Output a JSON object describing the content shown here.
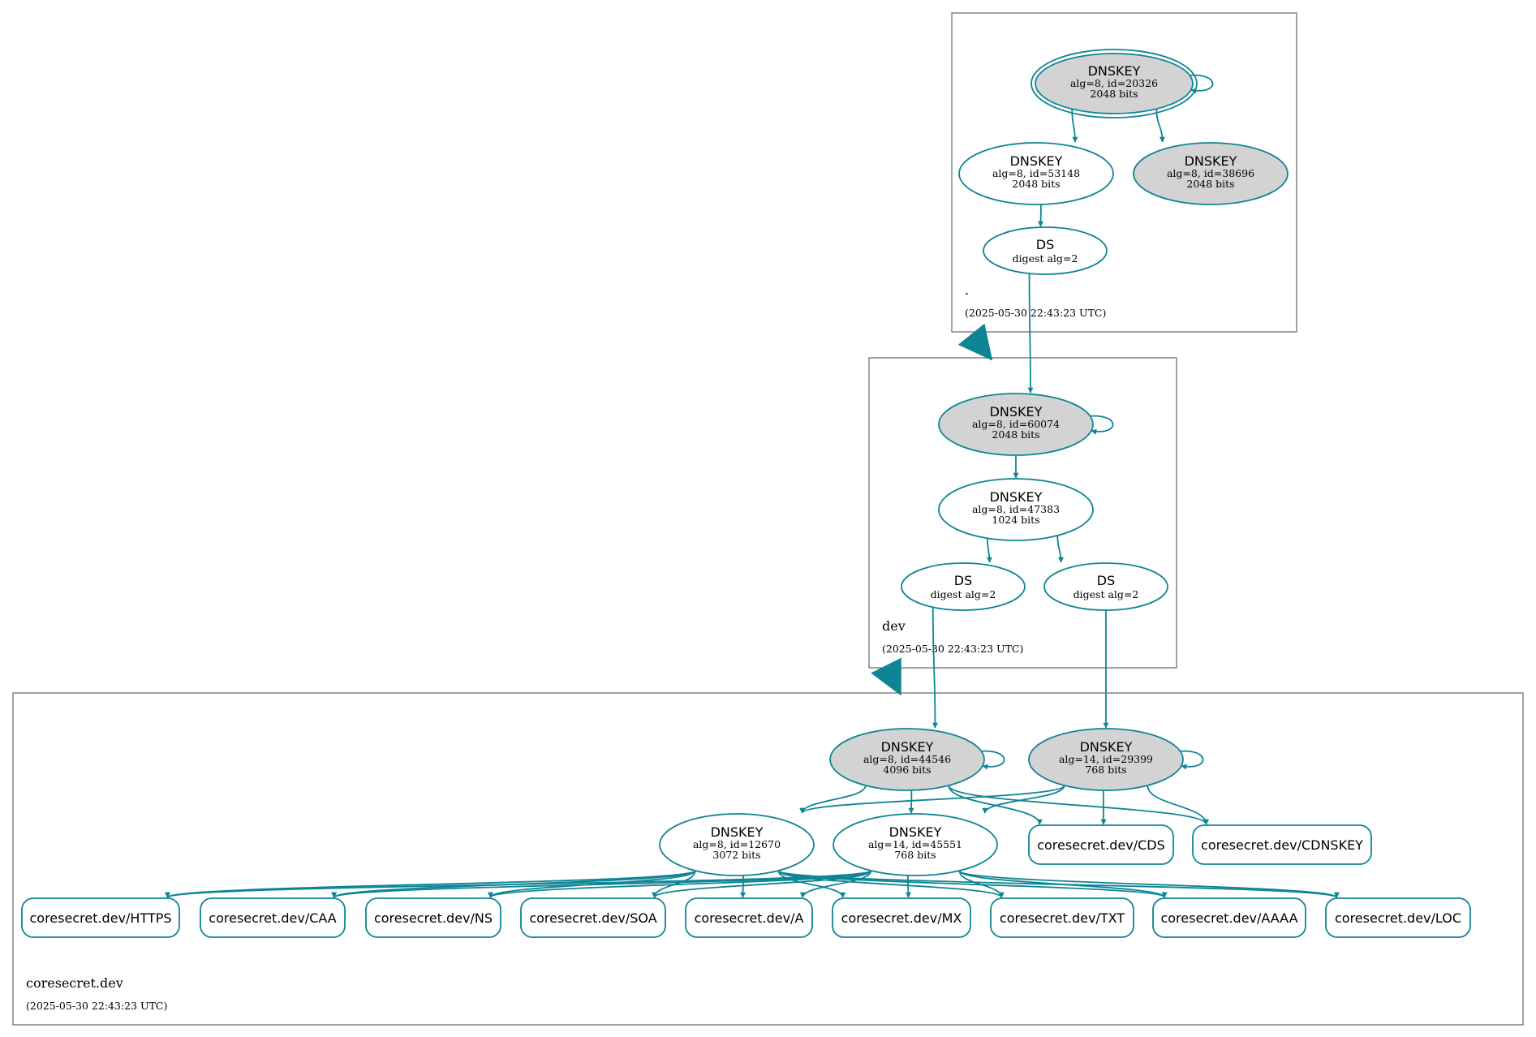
{
  "colors": {
    "edge": "#0e8595",
    "zone_border": "#666666",
    "key_fill": "#d3d3d3",
    "node_fill": "#ffffff"
  },
  "zones": [
    {
      "id": "root",
      "name": ".",
      "timestamp": "(2025-05-30 22:43:23 UTC)"
    },
    {
      "id": "dev",
      "name": "dev",
      "timestamp": "(2025-05-30 22:43:23 UTC)"
    },
    {
      "id": "coresecret",
      "name": "coresecret.dev",
      "timestamp": "(2025-05-30 22:43:23 UTC)"
    }
  ],
  "nodes": [
    {
      "id": "k20326",
      "zone": "root",
      "kind": "key",
      "title": "DNSKEY",
      "line2": "alg=8, id=20326",
      "line3": "2048 bits",
      "filled": true,
      "double": true
    },
    {
      "id": "k53148",
      "zone": "root",
      "kind": "key",
      "title": "DNSKEY",
      "line2": "alg=8, id=53148",
      "line3": "2048 bits",
      "filled": false
    },
    {
      "id": "k38696",
      "zone": "root",
      "kind": "key",
      "title": "DNSKEY",
      "line2": "alg=8, id=38696",
      "line3": "2048 bits",
      "filled": true
    },
    {
      "id": "dsroot",
      "zone": "root",
      "kind": "ds",
      "title": "DS",
      "line2": "digest alg=2"
    },
    {
      "id": "k60074",
      "zone": "dev",
      "kind": "key",
      "title": "DNSKEY",
      "line2": "alg=8, id=60074",
      "line3": "2048 bits",
      "filled": true
    },
    {
      "id": "k47383",
      "zone": "dev",
      "kind": "key",
      "title": "DNSKEY",
      "line2": "alg=8, id=47383",
      "line3": "1024 bits",
      "filled": false
    },
    {
      "id": "dsdev1",
      "zone": "dev",
      "kind": "ds",
      "title": "DS",
      "line2": "digest alg=2"
    },
    {
      "id": "dsdev2",
      "zone": "dev",
      "kind": "ds",
      "title": "DS",
      "line2": "digest alg=2"
    },
    {
      "id": "k44546",
      "zone": "coresecret",
      "kind": "key",
      "title": "DNSKEY",
      "line2": "alg=8, id=44546",
      "line3": "4096 bits",
      "filled": true
    },
    {
      "id": "k29399",
      "zone": "coresecret",
      "kind": "key",
      "title": "DNSKEY",
      "line2": "alg=14, id=29399",
      "line3": "768 bits",
      "filled": true
    },
    {
      "id": "k12670",
      "zone": "coresecret",
      "kind": "key",
      "title": "DNSKEY",
      "line2": "alg=8, id=12670",
      "line3": "3072 bits",
      "filled": false
    },
    {
      "id": "k45551",
      "zone": "coresecret",
      "kind": "key",
      "title": "DNSKEY",
      "line2": "alg=14, id=45551",
      "line3": "768 bits",
      "filled": false
    },
    {
      "id": "cds",
      "zone": "coresecret",
      "kind": "rr",
      "title": "coresecret.dev/CDS"
    },
    {
      "id": "cdnskey",
      "zone": "coresecret",
      "kind": "rr",
      "title": "coresecret.dev/CDNSKEY"
    },
    {
      "id": "https",
      "zone": "coresecret",
      "kind": "rr",
      "title": "coresecret.dev/HTTPS"
    },
    {
      "id": "caa",
      "zone": "coresecret",
      "kind": "rr",
      "title": "coresecret.dev/CAA"
    },
    {
      "id": "ns",
      "zone": "coresecret",
      "kind": "rr",
      "title": "coresecret.dev/NS"
    },
    {
      "id": "soa",
      "zone": "coresecret",
      "kind": "rr",
      "title": "coresecret.dev/SOA"
    },
    {
      "id": "a",
      "zone": "coresecret",
      "kind": "rr",
      "title": "coresecret.dev/A"
    },
    {
      "id": "mx",
      "zone": "coresecret",
      "kind": "rr",
      "title": "coresecret.dev/MX"
    },
    {
      "id": "txt",
      "zone": "coresecret",
      "kind": "rr",
      "title": "coresecret.dev/TXT"
    },
    {
      "id": "aaaa",
      "zone": "coresecret",
      "kind": "rr",
      "title": "coresecret.dev/AAAA"
    },
    {
      "id": "loc",
      "zone": "coresecret",
      "kind": "rr",
      "title": "coresecret.dev/LOC"
    }
  ],
  "edges": [
    [
      "k20326",
      "k20326"
    ],
    [
      "k20326",
      "k53148"
    ],
    [
      "k20326",
      "k38696"
    ],
    [
      "k53148",
      "dsroot"
    ],
    [
      "dsroot",
      "k60074"
    ],
    [
      "k60074",
      "k60074"
    ],
    [
      "k60074",
      "k47383"
    ],
    [
      "k47383",
      "dsdev1"
    ],
    [
      "k47383",
      "dsdev2"
    ],
    [
      "dsdev1",
      "k44546"
    ],
    [
      "dsdev2",
      "k29399"
    ],
    [
      "k44546",
      "k44546"
    ],
    [
      "k29399",
      "k29399"
    ],
    [
      "k44546",
      "k12670"
    ],
    [
      "k44546",
      "k45551"
    ],
    [
      "k44546",
      "cds"
    ],
    [
      "k44546",
      "cdnskey"
    ],
    [
      "k29399",
      "k12670"
    ],
    [
      "k29399",
      "k45551"
    ],
    [
      "k29399",
      "cds"
    ],
    [
      "k29399",
      "cdnskey"
    ],
    [
      "k12670",
      "https"
    ],
    [
      "k12670",
      "caa"
    ],
    [
      "k12670",
      "ns"
    ],
    [
      "k12670",
      "soa"
    ],
    [
      "k12670",
      "a"
    ],
    [
      "k12670",
      "mx"
    ],
    [
      "k12670",
      "txt"
    ],
    [
      "k12670",
      "aaaa"
    ],
    [
      "k12670",
      "loc"
    ],
    [
      "k45551",
      "https"
    ],
    [
      "k45551",
      "caa"
    ],
    [
      "k45551",
      "ns"
    ],
    [
      "k45551",
      "soa"
    ],
    [
      "k45551",
      "a"
    ],
    [
      "k45551",
      "mx"
    ],
    [
      "k45551",
      "txt"
    ],
    [
      "k45551",
      "aaaa"
    ],
    [
      "k45551",
      "loc"
    ]
  ],
  "delegations": [
    [
      "root",
      "dev"
    ],
    [
      "dev",
      "coresecret"
    ]
  ]
}
